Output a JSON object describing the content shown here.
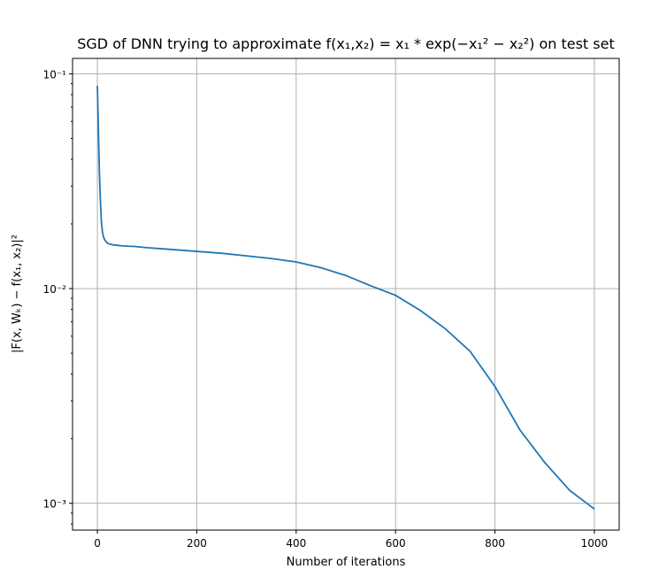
{
  "chart_data": {
    "type": "line",
    "title": "SGD of DNN trying to approximate f(x₁,x₂) = x₁ * exp(−x₁² − x₂²) on test set",
    "xlabel": "Number of iterations",
    "ylabel": "|F(x, Wₖ) − f(x₁, x₂)|²",
    "xlim": [
      -50,
      1050
    ],
    "ylim": [
      0.00075,
      0.118
    ],
    "yscale": "log",
    "grid": true,
    "xticks": [
      0,
      200,
      400,
      600,
      800,
      1000
    ],
    "xtick_labels": [
      "0",
      "200",
      "400",
      "600",
      "800",
      "1000"
    ],
    "yticks": [
      0.001,
      0.01,
      0.1
    ],
    "ytick_labels": [
      "10⁻³",
      "10⁻²",
      "10⁻¹"
    ],
    "line_color": "#1f77b4",
    "series": [
      {
        "x": [
          0,
          2,
          4,
          6,
          8,
          10,
          12,
          15,
          20,
          25,
          30,
          40,
          50,
          75,
          100,
          150,
          200,
          250,
          300,
          350,
          400,
          450,
          500,
          550,
          600,
          650,
          700,
          750,
          800,
          850,
          900,
          950,
          1000
        ],
        "values": [
          0.088,
          0.055,
          0.035,
          0.026,
          0.0205,
          0.0185,
          0.0175,
          0.0168,
          0.0163,
          0.0161,
          0.016,
          0.0159,
          0.0158,
          0.0157,
          0.0155,
          0.0152,
          0.0149,
          0.0146,
          0.0142,
          0.0138,
          0.0133,
          0.0125,
          0.0115,
          0.0103,
          0.0093,
          0.0079,
          0.0065,
          0.0051,
          0.0035,
          0.0022,
          0.00155,
          0.00115,
          0.00094
        ]
      }
    ]
  }
}
